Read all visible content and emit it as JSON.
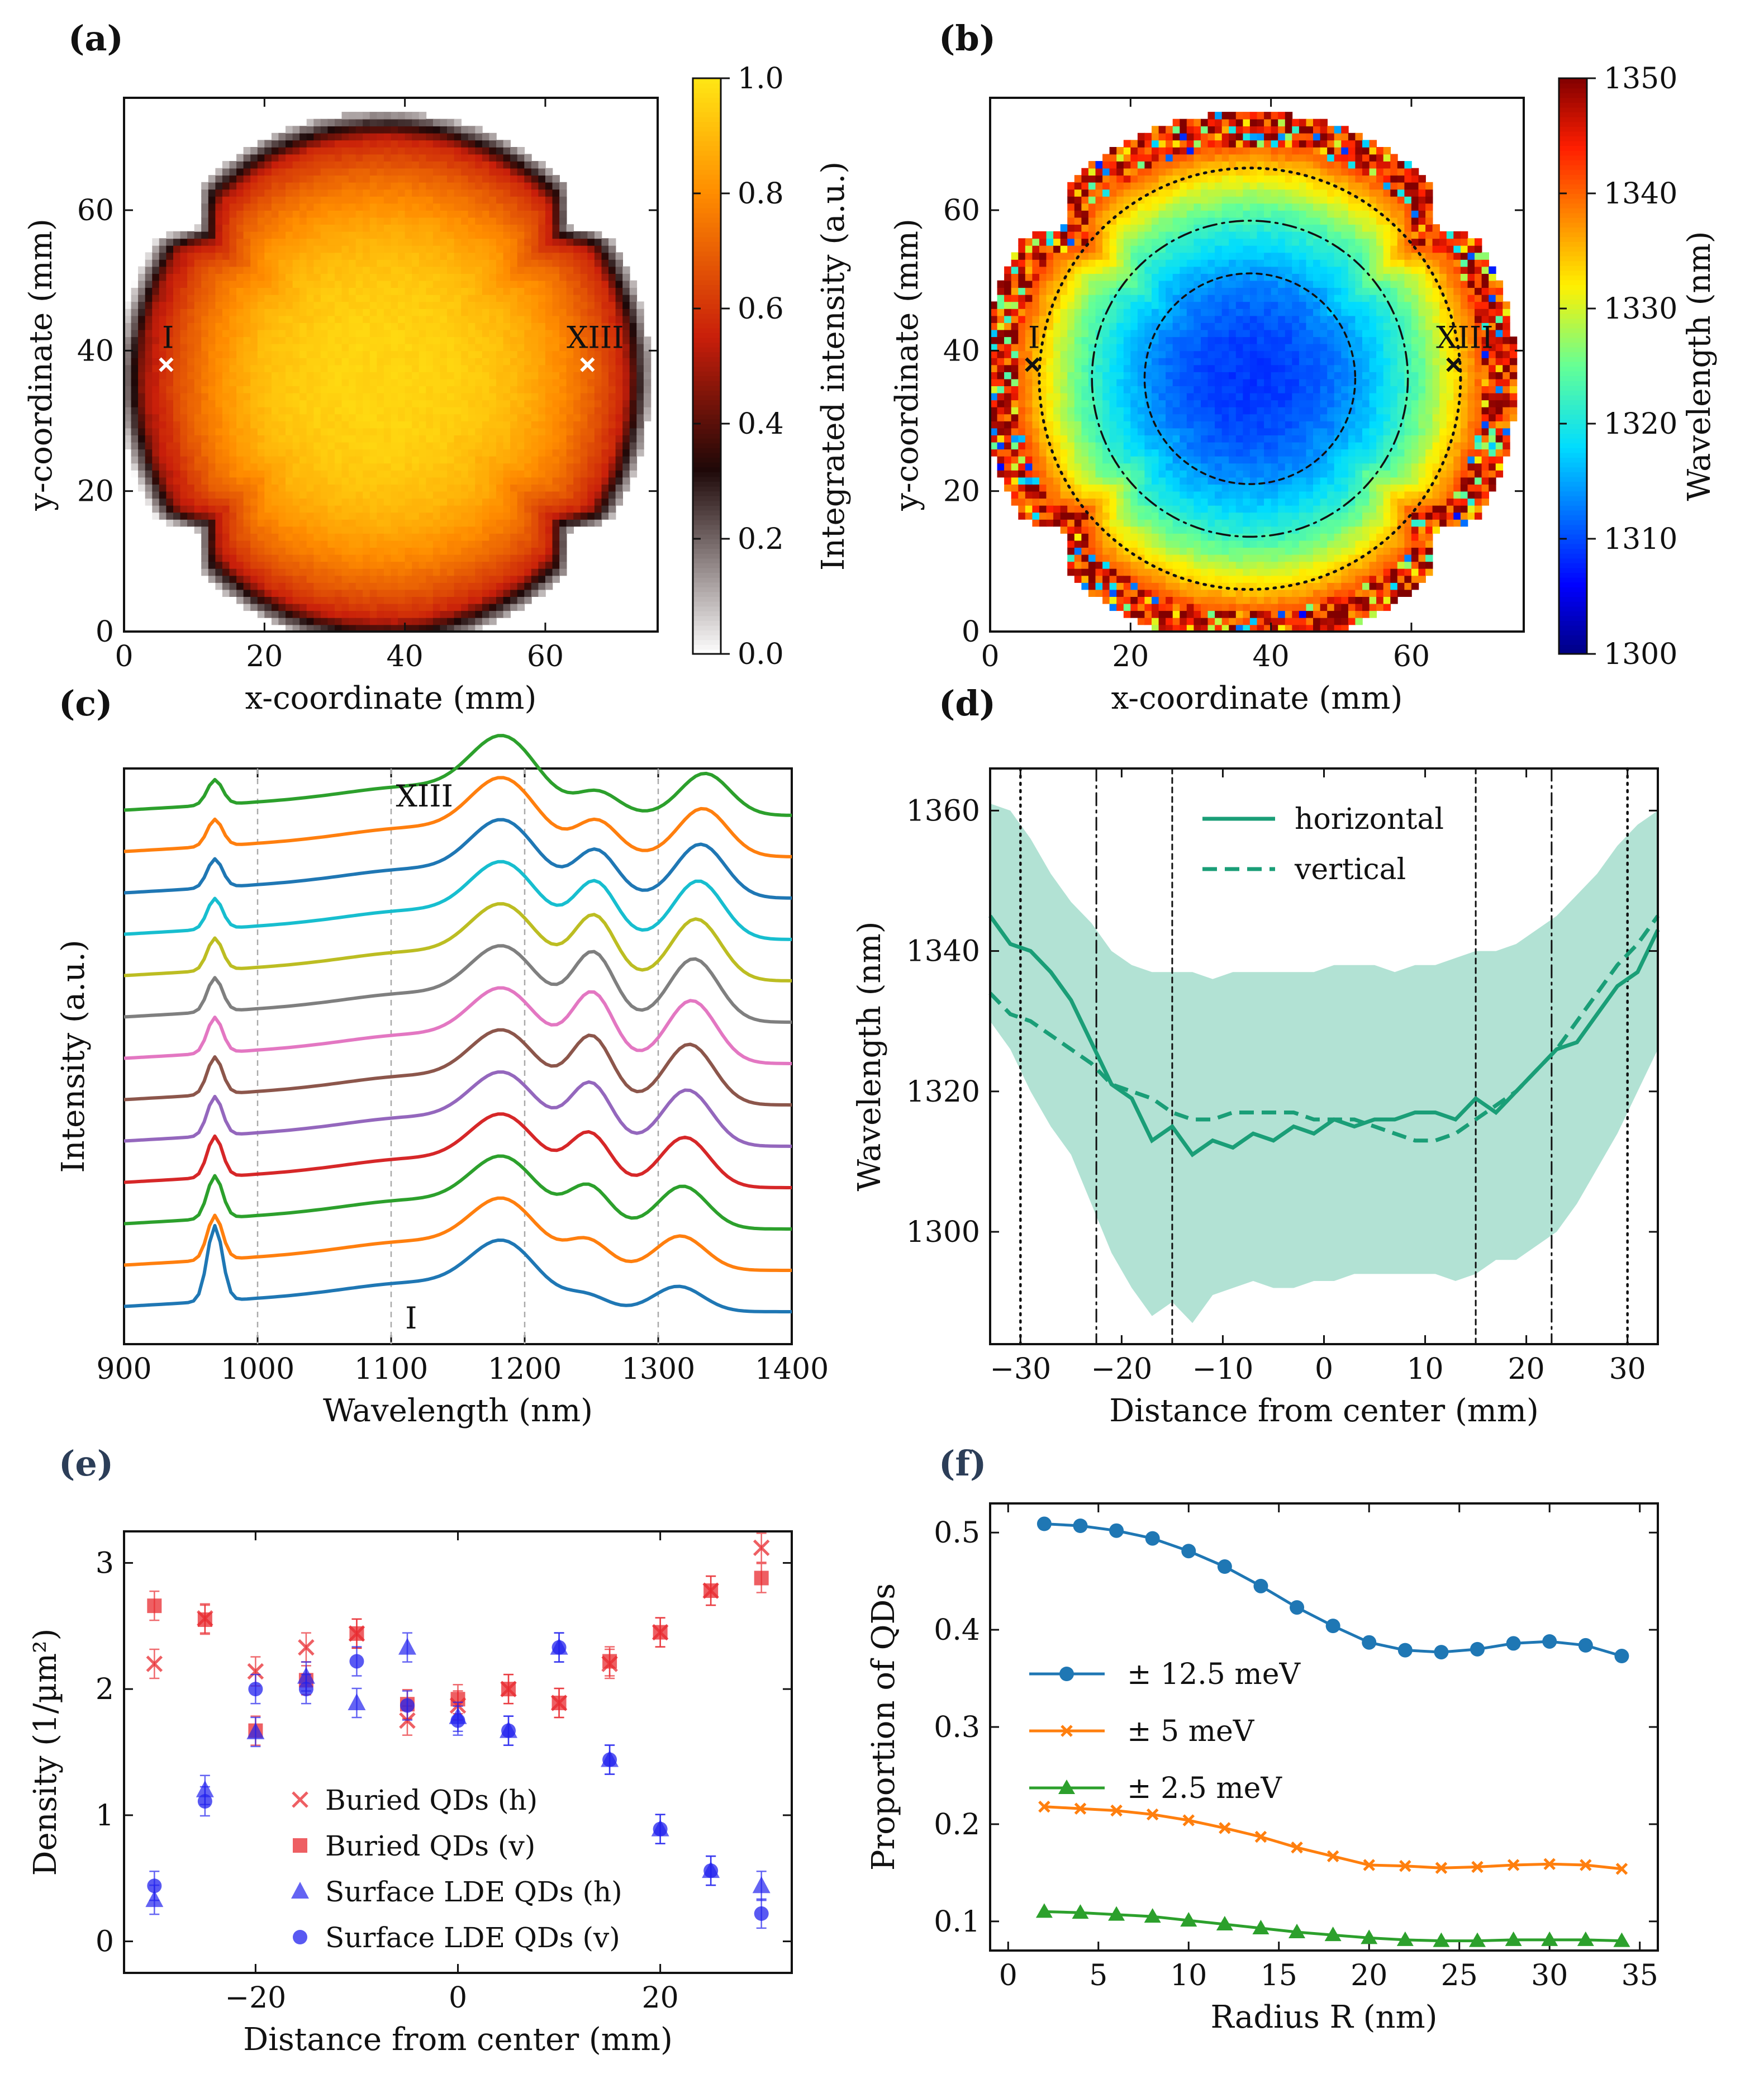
{
  "panel_labels": {
    "a": "(a)",
    "b": "(b)",
    "c": "(c)",
    "d": "(d)",
    "e": "(e)",
    "f": "(f)"
  },
  "colors": {
    "teal": "#1a9e77",
    "teal_fill": "#b2e2d4",
    "red": "#e8292f",
    "blue": "#2222ee",
    "c_series": [
      "#1f77b4",
      "#ff7f0e",
      "#2ca02c",
      "#d62728",
      "#9467bd",
      "#8c564b",
      "#e377c2",
      "#7f7f7f",
      "#bcbd22",
      "#17becf",
      "#1f77b4",
      "#ff7f0e",
      "#2ca02c"
    ],
    "f_series": [
      "#1f77b4",
      "#ff7f0e",
      "#2ca02c"
    ]
  },
  "chart_data": [
    {
      "id": "a",
      "type": "heatmap",
      "xlabel": "x-coordinate (mm)",
      "ylabel": "y-coordinate (mm)",
      "xlim": [
        0,
        76
      ],
      "ylim": [
        0,
        76
      ],
      "xticks": [
        0,
        20,
        40,
        60
      ],
      "yticks": [
        0,
        20,
        40,
        60
      ],
      "colorbar": {
        "label": "Integrated intensity (a.u.)",
        "min": 0.0,
        "max": 1.0,
        "ticks": [
          "0.0",
          "0.2",
          "0.4",
          "0.6",
          "0.8",
          "1.0"
        ]
      },
      "markers": [
        {
          "label": "I",
          "x": 6,
          "y": 38
        },
        {
          "label": "XIII",
          "x": 66,
          "y": 38
        }
      ],
      "wafer": {
        "center": [
          37,
          36
        ],
        "radius": 38
      }
    },
    {
      "id": "b",
      "type": "heatmap",
      "xlabel": "x-coordinate (mm)",
      "ylabel": "y-coordinate (mm)",
      "xlim": [
        0,
        76
      ],
      "ylim": [
        0,
        76
      ],
      "xticks": [
        0,
        20,
        40,
        60
      ],
      "yticks": [
        0,
        20,
        40,
        60
      ],
      "colorbar": {
        "label": "Wavelength (nm)",
        "min": 1300,
        "max": 1350,
        "ticks": [
          "1300",
          "1310",
          "1320",
          "1330",
          "1340",
          "1350"
        ]
      },
      "markers": [
        {
          "label": "I",
          "x": 6,
          "y": 38
        },
        {
          "label": "XIII",
          "x": 66,
          "y": 38
        }
      ],
      "circles": [
        {
          "r": 15,
          "style": "dashed"
        },
        {
          "r": 22.5,
          "style": "dashdot"
        },
        {
          "r": 30,
          "style": "dotted"
        }
      ],
      "wafer": {
        "center": [
          37,
          36
        ],
        "radius": 38
      }
    },
    {
      "id": "c",
      "type": "line",
      "xlabel": "Wavelength (nm)",
      "ylabel": "Intensity (a.u.)",
      "xlim": [
        900,
        1400
      ],
      "xticks": [
        900,
        1000,
        1100,
        1200,
        1300,
        1400
      ],
      "vlines": [
        1000,
        1100,
        1200,
        1300
      ],
      "n_spectra": 13,
      "annotations": [
        {
          "text": "I",
          "x": 1115
        },
        {
          "text": "XIII",
          "x": 1125
        }
      ]
    },
    {
      "id": "d",
      "type": "line",
      "xlabel": "Distance from center (mm)",
      "ylabel": "Wavelength (nm)",
      "xlim": [
        -33,
        33
      ],
      "ylim": [
        1284,
        1366
      ],
      "xticks": [
        -30,
        -20,
        -10,
        0,
        10,
        20,
        30
      ],
      "yticks": [
        1300,
        1320,
        1340,
        1360
      ],
      "vlines": [
        {
          "x": -30,
          "style": "dotted"
        },
        {
          "x": -22.5,
          "style": "dashdot"
        },
        {
          "x": -15,
          "style": "dashed"
        },
        {
          "x": 15,
          "style": "dashed"
        },
        {
          "x": 22.5,
          "style": "dashdot"
        },
        {
          "x": 30,
          "style": "dotted"
        }
      ],
      "series": [
        {
          "name": "horizontal",
          "style": "solid",
          "x": [
            -33,
            -31,
            -29,
            -27,
            -25,
            -23,
            -21,
            -19,
            -17,
            -15,
            -13,
            -11,
            -9,
            -7,
            -5,
            -3,
            -1,
            1,
            3,
            5,
            7,
            9,
            11,
            13,
            15,
            17,
            19,
            21,
            23,
            25,
            27,
            29,
            31,
            33
          ],
          "y": [
            1345,
            1341,
            1340,
            1337,
            1333,
            1327,
            1321,
            1319,
            1313,
            1315,
            1311,
            1313,
            1312,
            1314,
            1313,
            1315,
            1314,
            1316,
            1315,
            1316,
            1316,
            1317,
            1317,
            1316,
            1319,
            1317,
            1320,
            1323,
            1326,
            1327,
            1331,
            1335,
            1337,
            1343
          ]
        },
        {
          "name": "vertical",
          "style": "dashed",
          "x": [
            -33,
            -31,
            -29,
            -27,
            -25,
            -23,
            -21,
            -19,
            -17,
            -15,
            -13,
            -11,
            -9,
            -7,
            -5,
            -3,
            -1,
            1,
            3,
            5,
            7,
            9,
            11,
            13,
            15,
            17,
            19,
            21,
            23,
            25,
            27,
            29,
            31,
            33
          ],
          "y": [
            1334,
            1331,
            1330,
            1328,
            1326,
            1324,
            1321,
            1320,
            1319,
            1317,
            1316,
            1316,
            1317,
            1317,
            1317,
            1317,
            1316,
            1316,
            1316,
            1315,
            1314,
            1313,
            1313,
            1314,
            1316,
            1318,
            1320,
            1323,
            1326,
            1330,
            1334,
            1338,
            1341,
            1345
          ]
        }
      ],
      "band": {
        "x": [
          -33,
          -31,
          -29,
          -27,
          -25,
          -23,
          -21,
          -19,
          -17,
          -15,
          -13,
          -11,
          -9,
          -7,
          -5,
          -3,
          -1,
          1,
          3,
          5,
          7,
          9,
          11,
          13,
          15,
          17,
          19,
          21,
          23,
          25,
          27,
          29,
          31,
          33
        ],
        "upper": [
          1361,
          1360,
          1356,
          1351,
          1347,
          1344,
          1340,
          1338,
          1337,
          1337,
          1337,
          1336,
          1337,
          1337,
          1337,
          1337,
          1337,
          1338,
          1338,
          1338,
          1337,
          1338,
          1338,
          1339,
          1340,
          1340,
          1341,
          1343,
          1345,
          1348,
          1351,
          1355,
          1358,
          1360
        ],
        "lower": [
          1330,
          1326,
          1320,
          1315,
          1311,
          1304,
          1297,
          1292,
          1288,
          1290,
          1287,
          1291,
          1292,
          1293,
          1292,
          1292,
          1293,
          1293,
          1294,
          1294,
          1294,
          1294,
          1294,
          1293,
          1294,
          1296,
          1296,
          1298,
          1300,
          1304,
          1309,
          1314,
          1320,
          1326
        ]
      }
    },
    {
      "id": "e",
      "type": "scatter",
      "xlabel": "Distance from center (mm)",
      "ylabel": "Density (1/µm²)",
      "xlim": [
        -33,
        33
      ],
      "ylim": [
        -0.25,
        3.25
      ],
      "xticks": [
        -20,
        0,
        20
      ],
      "yticks": [
        0,
        1,
        2,
        3
      ],
      "series": [
        {
          "name": "Buried QDs (h)",
          "marker": "x",
          "color": "#e8292f",
          "x": [
            -30,
            -25,
            -20,
            -15,
            -10,
            -5,
            0,
            5,
            10,
            15,
            20,
            25,
            30
          ],
          "y": [
            2.2,
            2.56,
            2.14,
            2.33,
            2.44,
            1.75,
            1.87,
            2.0,
            1.89,
            2.2,
            2.45,
            2.78,
            3.12
          ]
        },
        {
          "name": "Buried QDs (v)",
          "marker": "s",
          "color": "#e8292f",
          "x": [
            -30,
            -25,
            -20,
            -15,
            -10,
            -5,
            0,
            5,
            10,
            15,
            20,
            25,
            30
          ],
          "y": [
            2.66,
            2.55,
            1.67,
            2.07,
            2.44,
            1.88,
            1.92,
            2.0,
            1.89,
            2.22,
            2.45,
            2.78,
            2.88
          ]
        },
        {
          "name": "Surface LDE QDs (h)",
          "marker": "^",
          "color": "#2222ee",
          "x": [
            -30,
            -25,
            -20,
            -15,
            -10,
            -5,
            0,
            5,
            10,
            15,
            20,
            25,
            30
          ],
          "y": [
            0.33,
            1.2,
            1.66,
            2.1,
            1.89,
            2.33,
            1.78,
            1.67,
            2.33,
            1.44,
            0.89,
            0.56,
            0.44
          ]
        },
        {
          "name": "Surface LDE QDs (v)",
          "marker": "o",
          "color": "#2222ee",
          "x": [
            -30,
            -25,
            -20,
            -15,
            -10,
            -5,
            0,
            5,
            10,
            15,
            20,
            25,
            30
          ],
          "y": [
            0.44,
            1.11,
            2.0,
            2.0,
            2.22,
            1.87,
            1.75,
            1.67,
            2.33,
            1.44,
            0.89,
            0.56,
            0.22
          ]
        }
      ]
    },
    {
      "id": "f",
      "type": "line",
      "xlabel": "Radius R (nm)",
      "ylabel": "Proportion of QDs",
      "xlim": [
        -1,
        36
      ],
      "ylim": [
        0.07,
        0.53
      ],
      "xticks": [
        0,
        5,
        10,
        15,
        20,
        25,
        30,
        35
      ],
      "yticks": [
        0.1,
        0.2,
        0.3,
        0.4,
        0.5
      ],
      "x": [
        2,
        4,
        6,
        8,
        10,
        12,
        14,
        16,
        18,
        20,
        22,
        24,
        26,
        28,
        30,
        32,
        34
      ],
      "series": [
        {
          "name": "± 12.5 meV",
          "marker": "o",
          "values": [
            0.509,
            0.507,
            0.502,
            0.494,
            0.481,
            0.465,
            0.445,
            0.423,
            0.404,
            0.387,
            0.379,
            0.377,
            0.38,
            0.386,
            0.388,
            0.384,
            0.373
          ]
        },
        {
          "name": "± 5 meV",
          "marker": "x",
          "values": [
            0.218,
            0.216,
            0.214,
            0.21,
            0.204,
            0.196,
            0.187,
            0.176,
            0.167,
            0.158,
            0.157,
            0.155,
            0.156,
            0.158,
            0.159,
            0.158,
            0.154
          ]
        },
        {
          "name": "± 2.5 meV",
          "marker": "^",
          "values": [
            0.11,
            0.109,
            0.107,
            0.105,
            0.101,
            0.097,
            0.093,
            0.089,
            0.086,
            0.083,
            0.081,
            0.08,
            0.08,
            0.081,
            0.081,
            0.081,
            0.08
          ]
        }
      ]
    }
  ]
}
